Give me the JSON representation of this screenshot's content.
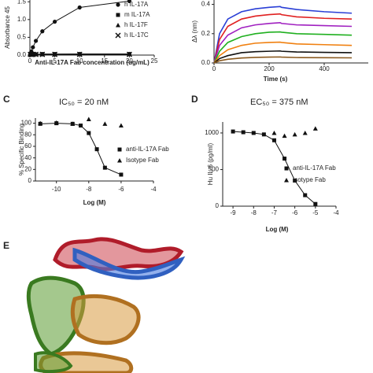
{
  "chart_data": [
    {
      "type": "line",
      "ylabel": "Absorbance 45",
      "xlabel": "Anti-IL-17A Fab concentration (ug/mL)",
      "x": [
        0.1,
        0.3,
        0.6,
        1.2,
        2.5,
        5,
        10,
        20
      ],
      "series": [
        {
          "name": "h IL-17A",
          "color": "#111111",
          "marker": "circle",
          "show_line": true,
          "values": [
            0.03,
            0.1,
            0.22,
            0.4,
            0.67,
            0.94,
            1.34,
            1.52
          ]
        },
        {
          "name": "m IL-17A",
          "color": "#111111",
          "marker": "square",
          "show_line": true,
          "values": [
            0.02,
            0.02,
            0.03,
            0.02,
            0.03,
            0.03,
            0.03,
            0.03
          ]
        },
        {
          "name": "h IL-17F",
          "color": "#111111",
          "marker": "triangle",
          "show_line": true,
          "values": [
            0.02,
            0.02,
            0.02,
            0.03,
            0.02,
            0.02,
            0.03,
            0.03
          ]
        },
        {
          "name": "h IL-17C",
          "color": "#111111",
          "marker": "x",
          "show_line": true,
          "values": [
            0.02,
            0.02,
            0.02,
            0.02,
            0.02,
            0.02,
            0.02,
            0.02
          ]
        }
      ],
      "xlim": [
        0,
        25
      ],
      "xticks": [
        0,
        5,
        10,
        15,
        20,
        25
      ],
      "ylim": [
        0,
        1.55
      ],
      "yticks": [
        {
          "value": 0,
          "label": "0.0"
        },
        {
          "value": 0.5,
          "label": "0.5"
        },
        {
          "value": 1,
          "label": "1.0"
        },
        1.5
      ]
    },
    {
      "type": "line",
      "ylabel": "Δλ (nm)",
      "xlabel": "Time (s)",
      "x": [
        0,
        20,
        50,
        100,
        150,
        200,
        240,
        245,
        300,
        400,
        500
      ],
      "series": [
        {
          "color": "#2a3fd6",
          "marker": null,
          "show_line": true,
          "values": [
            0,
            0.2,
            0.3,
            0.35,
            0.37,
            0.38,
            0.385,
            0.38,
            0.365,
            0.35,
            0.34
          ]
        },
        {
          "color": "#e02020",
          "marker": null,
          "show_line": true,
          "values": [
            0,
            0.16,
            0.25,
            0.3,
            0.32,
            0.33,
            0.335,
            0.33,
            0.315,
            0.305,
            0.3
          ]
        },
        {
          "color": "#a020c0",
          "marker": null,
          "show_line": true,
          "values": [
            0,
            0.12,
            0.19,
            0.24,
            0.26,
            0.27,
            0.275,
            0.27,
            0.26,
            0.255,
            0.25
          ]
        },
        {
          "color": "#20b020",
          "marker": null,
          "show_line": true,
          "values": [
            0,
            0.08,
            0.14,
            0.18,
            0.2,
            0.21,
            0.212,
            0.21,
            0.2,
            0.195,
            0.19
          ]
        },
        {
          "color": "#f08010",
          "marker": null,
          "show_line": true,
          "values": [
            0,
            0.05,
            0.09,
            0.12,
            0.135,
            0.14,
            0.142,
            0.14,
            0.13,
            0.125,
            0.12
          ]
        },
        {
          "color": "#111111",
          "marker": null,
          "show_line": true,
          "values": [
            0,
            0.03,
            0.05,
            0.07,
            0.077,
            0.08,
            0.082,
            0.08,
            0.075,
            0.072,
            0.07
          ]
        },
        {
          "color": "#8a5a20",
          "marker": null,
          "show_line": true,
          "values": [
            0,
            0.015,
            0.025,
            0.034,
            0.038,
            0.04,
            0.041,
            0.04,
            0.037,
            0.036,
            0.035
          ]
        }
      ],
      "xlim": [
        0,
        560
      ],
      "xticks": [
        0,
        200,
        400
      ],
      "ylim": [
        0,
        0.43
      ],
      "yticks": [
        {
          "value": 0,
          "label": "0.0"
        },
        {
          "value": 0.2,
          "label": "0.2"
        },
        {
          "value": 0.4,
          "label": "0.4"
        }
      ]
    },
    {
      "type": "line",
      "panel_label": "C",
      "title": "IC₅₀ = 20 nM",
      "ylabel": "% Specific Binding",
      "xlabel": "Log (M)",
      "x": [
        -11,
        -10,
        -9,
        -8.5,
        -8,
        -7.5,
        -7,
        -6
      ],
      "series": [
        {
          "name": "anti-IL-17A Fab",
          "color": "#111111",
          "marker": "square",
          "show_line": true,
          "values": [
            99,
            100,
            99,
            96,
            83,
            55,
            23,
            11
          ]
        },
        {
          "name": "Isotype Fab",
          "color": "#111111",
          "marker": "triangle",
          "show_line": false,
          "values": [
            100,
            101,
            99,
            null,
            107,
            null,
            99,
            96
          ]
        }
      ],
      "xlim": [
        -11.3,
        -4
      ],
      "xticks": [
        -10,
        -8,
        -6,
        -4
      ],
      "ylim": [
        0,
        109
      ],
      "yticks": [
        0,
        20,
        40,
        60,
        80,
        100
      ]
    },
    {
      "type": "line",
      "panel_label": "D",
      "title": "EC₅₀ = 375 nM",
      "ylabel": "Hu IL-6 (pg/ml)",
      "xlabel": "Log (M)",
      "x": [
        -9,
        -8.5,
        -8,
        -7.5,
        -7,
        -6.5,
        -6,
        -5.5,
        -5
      ],
      "series": [
        {
          "name": "anti-IL-17A Fab",
          "color": "#111111",
          "marker": "square",
          "show_line": true,
          "values": [
            1020,
            1010,
            1000,
            980,
            900,
            650,
            350,
            150,
            30
          ]
        },
        {
          "name": "Isotype Fab",
          "color": "#111111",
          "marker": "triangle",
          "show_line": false,
          "values": [
            null,
            null,
            null,
            null,
            1000,
            960,
            980,
            1000,
            1060
          ]
        }
      ],
      "xlim": [
        -9.5,
        -4
      ],
      "xticks": [
        -9,
        -8,
        -7,
        -6,
        -5,
        -4
      ],
      "ylim": [
        0,
        1150
      ],
      "yticks": [
        0,
        500,
        1000
      ]
    }
  ],
  "panel_e": {
    "label": "E"
  }
}
